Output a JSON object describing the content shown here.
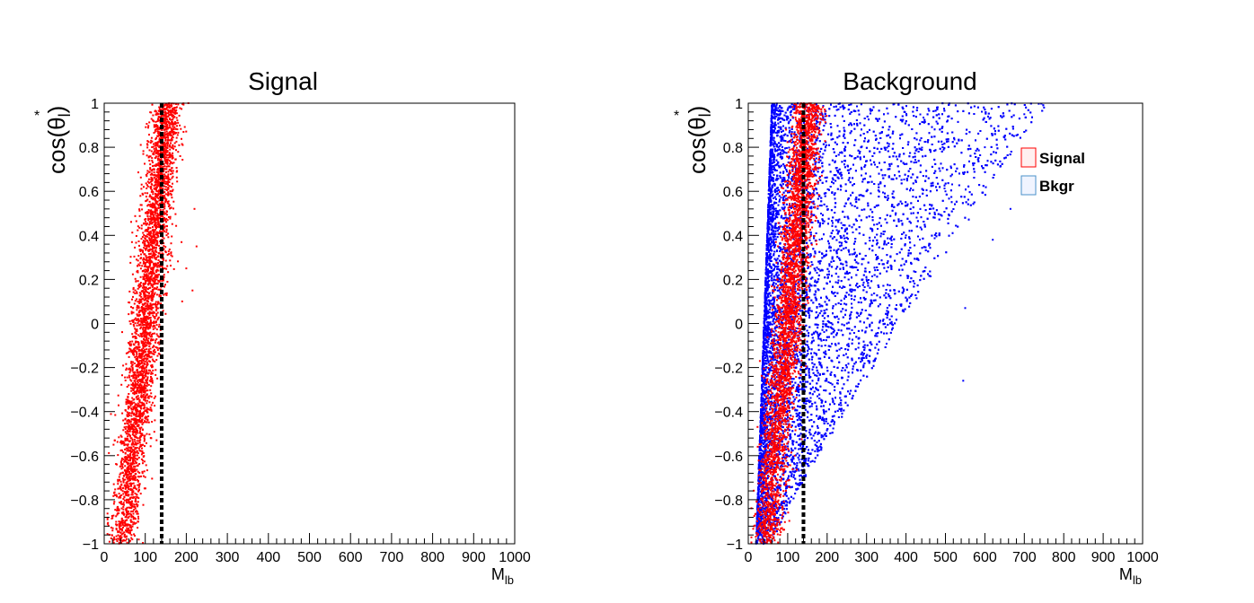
{
  "colors": {
    "signal": "#ff0000",
    "background": "#0000ff",
    "frame": "#000000",
    "cut_line": "#000000"
  },
  "chart_data": [
    {
      "type": "scatter",
      "title": "Signal",
      "xlabel": {
        "main": "M",
        "sub": "lb"
      },
      "ylabel": {
        "main": "cos(θ",
        "sub": "l",
        "close": ")",
        "sup": "*"
      },
      "xlim": [
        0,
        1000
      ],
      "ylim": [
        -1,
        1
      ],
      "xticks": [
        0,
        100,
        200,
        300,
        400,
        500,
        600,
        700,
        800,
        900,
        1000
      ],
      "yticks": [
        -1,
        -0.8,
        -0.6,
        -0.4,
        -0.2,
        0,
        0.2,
        0.4,
        0.6,
        0.8,
        1
      ],
      "xtick_labels": [
        "0",
        "100",
        "200",
        "300",
        "400",
        "500",
        "600",
        "700",
        "800",
        "900",
        "1000"
      ],
      "ytick_labels": [
        "−1",
        "−0.8",
        "−0.6",
        "−0.4",
        "−0.2",
        "0",
        "0.2",
        "0.4",
        "0.6",
        "0.8",
        "1"
      ],
      "cut_line_x": 140,
      "series": [
        {
          "color": "#ff0000",
          "distribution": "M_lb centered ~ 45 + 55*(cos+1), spread ~18; dense band 30–190",
          "points": [
            [
              40,
              -0.95
            ],
            [
              55,
              -0.85
            ],
            [
              60,
              -0.7
            ],
            [
              75,
              -0.6
            ],
            [
              80,
              -0.45
            ],
            [
              95,
              -0.3
            ],
            [
              100,
              -0.1
            ],
            [
              110,
              0.0
            ],
            [
              115,
              0.2
            ],
            [
              120,
              0.4
            ],
            [
              130,
              0.6
            ],
            [
              135,
              0.8
            ],
            [
              150,
              0.95
            ],
            [
              190,
              0.1
            ],
            [
              200,
              0.25
            ],
            [
              220,
              0.52
            ],
            [
              225,
              0.35
            ],
            [
              215,
              0.15
            ],
            [
              205,
              1.0
            ],
            [
              150,
              0.5
            ]
          ]
        }
      ]
    },
    {
      "type": "scatter",
      "title": "Background",
      "xlabel": {
        "main": "M",
        "sub": "lb"
      },
      "ylabel": {
        "main": "cos(θ",
        "sub": "l",
        "close": ")",
        "sup": "*"
      },
      "xlim": [
        0,
        1000
      ],
      "ylim": [
        -1,
        1
      ],
      "xticks": [
        0,
        100,
        200,
        300,
        400,
        500,
        600,
        700,
        800,
        900,
        1000
      ],
      "yticks": [
        -1,
        -0.8,
        -0.6,
        -0.4,
        -0.2,
        0,
        0.2,
        0.4,
        0.6,
        0.8,
        1
      ],
      "xtick_labels": [
        "0",
        "100",
        "200",
        "300",
        "400",
        "500",
        "600",
        "700",
        "800",
        "900",
        "1000"
      ],
      "ytick_labels": [
        "−1",
        "−0.8",
        "−0.6",
        "−0.4",
        "−0.2",
        "0",
        "0.2",
        "0.4",
        "0.6",
        "0.8",
        "1"
      ],
      "cut_line_x": 140,
      "legend": {
        "position": "top-right",
        "entries": [
          {
            "label": "Signal",
            "color": "#ff0000"
          },
          {
            "label": "Bkgr",
            "color": "#0000ff"
          }
        ]
      },
      "series": [
        {
          "name": "Bkgr",
          "color": "#0000ff",
          "distribution": "triangular fan: lower edge at M_lb~20 cos=-1, upper M_lb edge grows to ~750 at cos=1",
          "points": [
            [
              30,
              -0.95
            ],
            [
              60,
              -0.8
            ],
            [
              100,
              -0.6
            ],
            [
              150,
              -0.4
            ],
            [
              200,
              -0.2
            ],
            [
              250,
              0.0
            ],
            [
              300,
              0.2
            ],
            [
              400,
              0.4
            ],
            [
              500,
              0.6
            ],
            [
              600,
              0.8
            ],
            [
              700,
              0.95
            ],
            [
              545,
              -0.26
            ],
            [
              550,
              0.07
            ],
            [
              620,
              0.38
            ],
            [
              665,
              0.52
            ],
            [
              750,
              0.98
            ]
          ]
        },
        {
          "name": "Signal",
          "color": "#ff0000",
          "distribution": "same as Signal panel, overlaid",
          "points": [
            [
              40,
              -0.95
            ],
            [
              60,
              -0.7
            ],
            [
              80,
              -0.45
            ],
            [
              100,
              -0.1
            ],
            [
              115,
              0.2
            ],
            [
              130,
              0.6
            ],
            [
              140,
              0.95
            ]
          ]
        }
      ]
    }
  ]
}
